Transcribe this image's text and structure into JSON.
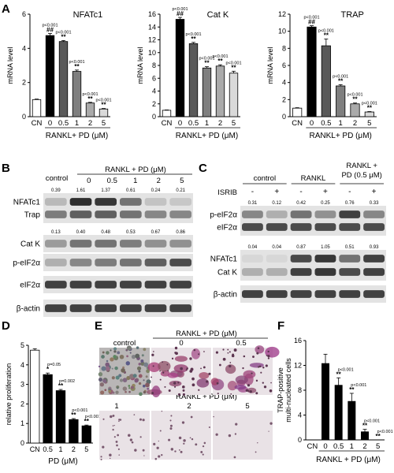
{
  "panels": {
    "A": {
      "letter": "A",
      "x_group_label": "RANKL+ PD (μM)",
      "charts": [
        {
          "type": "bar",
          "title": "NFATc1",
          "ylabel": "mRNA level",
          "ylim": [
            0,
            6
          ],
          "yticks": [
            "0",
            "2",
            "4",
            "6"
          ],
          "ytick_values": [
            0,
            2,
            4,
            6
          ],
          "categories": [
            "CN",
            "0",
            "0.5",
            "1",
            "2",
            "5"
          ],
          "values": [
            1.0,
            4.75,
            4.4,
            2.65,
            0.8,
            0.45
          ],
          "errors": [
            0.03,
            0.12,
            0.06,
            0.08,
            0.04,
            0.03
          ],
          "fills": [
            "#ffffff",
            "#000000",
            "#595959",
            "#7f7f7f",
            "#aaaaaa",
            "#d9d9d9"
          ],
          "stars": [
            "",
            "##",
            "**",
            "**",
            "**",
            "**"
          ],
          "pvals": [
            "",
            "p<0.001",
            "p<0.001",
            "p<0.001",
            "p<0.001",
            "p<0.001"
          ]
        },
        {
          "type": "bar",
          "title": "Cat K",
          "ylabel": "mRNA level",
          "ylim": [
            0,
            16
          ],
          "yticks": [
            "0",
            "2",
            "4",
            "6",
            "8",
            "10",
            "12",
            "14",
            "16"
          ],
          "ytick_values": [
            0,
            2,
            4,
            6,
            8,
            10,
            12,
            14,
            16
          ],
          "categories": [
            "CN",
            "0",
            "0.5",
            "1",
            "2",
            "5"
          ],
          "values": [
            1.0,
            15.2,
            11.4,
            7.6,
            7.9,
            6.8
          ],
          "errors": [
            0.05,
            0.3,
            0.2,
            0.2,
            0.2,
            0.3
          ],
          "fills": [
            "#ffffff",
            "#000000",
            "#595959",
            "#7f7f7f",
            "#aaaaaa",
            "#d9d9d9"
          ],
          "stars": [
            "",
            "##",
            "**",
            "**",
            "**",
            "**"
          ],
          "pvals": [
            "",
            "p<0.001",
            "p<0.001",
            "p<0.001",
            "p<0.001",
            "p<0.001"
          ]
        },
        {
          "type": "bar",
          "title": "TRAP",
          "ylabel": "mRNA level",
          "ylim": [
            0,
            12
          ],
          "yticks": [
            "0",
            "2",
            "4",
            "6",
            "8",
            "10",
            "12"
          ],
          "ytick_values": [
            0,
            2,
            4,
            6,
            8,
            10,
            12
          ],
          "categories": [
            "CN",
            "0",
            "0.5",
            "1",
            "2",
            "5"
          ],
          "values": [
            1.0,
            10.5,
            8.3,
            3.6,
            1.5,
            0.55
          ],
          "errors": [
            0.05,
            0.15,
            0.8,
            0.15,
            0.1,
            0.05
          ],
          "fills": [
            "#ffffff",
            "#000000",
            "#595959",
            "#7f7f7f",
            "#aaaaaa",
            "#d9d9d9"
          ],
          "stars": [
            "",
            "##",
            "**",
            "**",
            "**",
            "**"
          ],
          "pvals": [
            "",
            "p<0.001",
            "p<0.001",
            "p<0.001",
            "p<0.001",
            "p<0.001"
          ]
        }
      ]
    },
    "B": {
      "letter": "B",
      "header_control": "control",
      "header_treat": "RANKL + PD (μM)",
      "lanes": [
        "0",
        "0.5",
        "1",
        "2",
        "5"
      ],
      "rows": [
        {
          "label": "NFATc1",
          "quant": [
            "0.39",
            "1.61",
            "1.37",
            "0.61",
            "0.24",
            "0.21"
          ],
          "intensity": [
            0.25,
            0.95,
            0.9,
            0.6,
            0.2,
            0.18
          ]
        },
        {
          "label": "Trap",
          "quant": [],
          "intensity": [
            0.55,
            0.7,
            0.7,
            0.6,
            0.5,
            0.5
          ]
        },
        {
          "label": "Cat K",
          "quant": [
            "0.13",
            "0.40",
            "0.48",
            "0.53",
            "0.67",
            "0.86"
          ],
          "intensity": [
            0.4,
            0.6,
            0.6,
            0.55,
            0.45,
            0.45
          ]
        },
        {
          "label": "p-eIF2α",
          "quant": [],
          "intensity": [
            0.3,
            0.5,
            0.55,
            0.6,
            0.7,
            0.8
          ]
        },
        {
          "label": "eIF2α",
          "quant": [],
          "intensity": [
            0.85,
            0.85,
            0.85,
            0.85,
            0.85,
            0.85
          ]
        },
        {
          "label": "β-actin",
          "quant": [],
          "intensity": [
            0.85,
            0.85,
            0.85,
            0.85,
            0.85,
            0.85
          ]
        }
      ]
    },
    "C": {
      "letter": "C",
      "groups": [
        "control",
        "RANKL",
        "RANKL +",
        "PD (0.5 μM)"
      ],
      "isrib_label": "ISRIB",
      "isrib_signs": [
        "-",
        "+",
        "-",
        "+",
        "-",
        "+"
      ],
      "rows": [
        {
          "label": "p-eIF2α",
          "quant": [
            "0.31",
            "0.12",
            "0.42",
            "0.25",
            "0.76",
            "0.33"
          ],
          "intensity": [
            0.5,
            0.3,
            0.6,
            0.45,
            0.85,
            0.5
          ]
        },
        {
          "label": "eIF2α",
          "quant": [],
          "intensity": [
            0.8,
            0.8,
            0.8,
            0.8,
            0.8,
            0.8
          ]
        },
        {
          "label": "NFATc1",
          "quant": [
            "0.04",
            "0.04",
            "0.87",
            "1.05",
            "0.51",
            "0.93"
          ],
          "intensity": [
            0.1,
            0.1,
            0.8,
            0.9,
            0.6,
            0.85
          ]
        },
        {
          "label": "Cat K",
          "quant": [],
          "intensity": [
            0.3,
            0.3,
            0.85,
            0.9,
            0.8,
            0.85
          ]
        },
        {
          "label": "β-actin",
          "quant": [],
          "intensity": [
            0.85,
            0.85,
            0.85,
            0.85,
            0.85,
            0.85
          ]
        }
      ]
    },
    "D": {
      "letter": "D",
      "chart": {
        "type": "bar",
        "ylabel": "relative proliferation",
        "xlabel": "PD (μM)",
        "ylim": [
          0,
          5
        ],
        "yticks": [
          "0",
          "1",
          "2",
          "3",
          "4",
          "5"
        ],
        "ytick_values": [
          0,
          1,
          2,
          3,
          4,
          5
        ],
        "categories": [
          "CN",
          "0.5",
          "1",
          "2",
          "5"
        ],
        "values": [
          4.75,
          3.5,
          2.68,
          1.2,
          0.88
        ],
        "errors": [
          0.07,
          0.08,
          0.06,
          0.05,
          0.04
        ],
        "fills": [
          "#ffffff",
          "#000000",
          "#000000",
          "#000000",
          "#000000"
        ],
        "stars": [
          "",
          "*",
          "**",
          "**",
          "**"
        ],
        "pvals": [
          "",
          "p=0.05",
          "p=0.002",
          "p<0.001",
          "p<0.001"
        ]
      }
    },
    "E": {
      "letter": "E",
      "top_control": "control",
      "top_header": "RANKL + PD (μM)",
      "top_lanes": [
        "0",
        "0.5"
      ],
      "bottom_header": "RANKL + PD (μM)",
      "bottom_lanes": [
        "1",
        "2",
        "5"
      ]
    },
    "F": {
      "letter": "F",
      "chart": {
        "type": "bar",
        "ylabel": "TRAP-positive multi-nucleated cells",
        "xlabel": "RANKL + PD (μM)",
        "ylim": [
          0,
          16
        ],
        "yticks": [
          "0",
          "4",
          "8",
          "12",
          "16"
        ],
        "ytick_values": [
          0,
          4,
          8,
          12,
          16
        ],
        "categories": [
          "CN",
          "0",
          "0.5",
          "1",
          "2",
          "5"
        ],
        "values": [
          0,
          12.3,
          8.8,
          6.2,
          1.3,
          0
        ],
        "errors": [
          0,
          1.5,
          1.2,
          1.3,
          0.4,
          0
        ],
        "fills": [
          "#000000",
          "#000000",
          "#000000",
          "#000000",
          "#000000",
          "#000000"
        ],
        "stars": [
          "",
          "",
          "**",
          "**",
          "**",
          "**"
        ],
        "pvals": [
          "",
          "",
          "p<0.001",
          "p<0.001",
          "p<0.001",
          "p<0.001"
        ]
      }
    }
  }
}
